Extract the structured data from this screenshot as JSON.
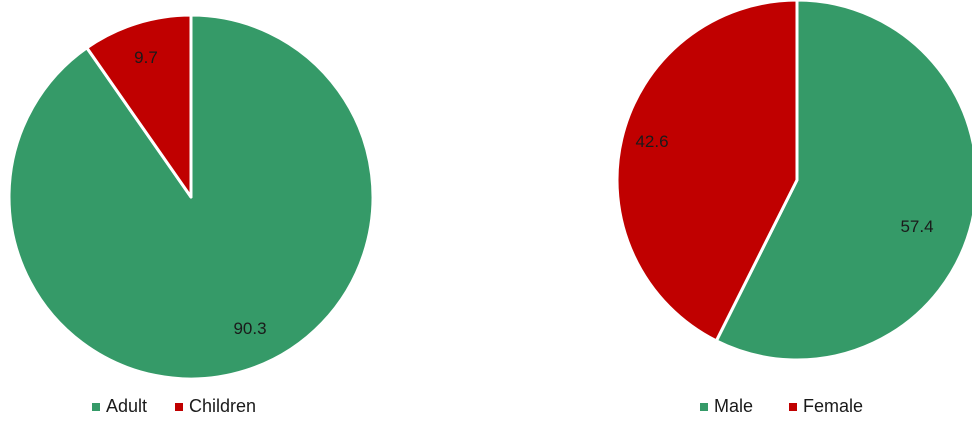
{
  "chart_data": [
    {
      "type": "pie",
      "categories": [
        "Adult",
        "Children"
      ],
      "values": [
        90.3,
        9.7
      ],
      "colors": [
        "#359a68",
        "#c00000"
      ],
      "data_labels": [
        "90.3",
        "9.7"
      ],
      "legend": {
        "position": "bottom",
        "entries": [
          "Adult",
          "Children"
        ]
      },
      "start_angle": "12 o'clock",
      "direction": "clockwise"
    },
    {
      "type": "pie",
      "categories": [
        "Male",
        "Female"
      ],
      "values": [
        57.4,
        42.6
      ],
      "colors": [
        "#359a68",
        "#c00000"
      ],
      "data_labels": [
        "57.4",
        "42.6"
      ],
      "legend": {
        "position": "bottom",
        "entries": [
          "Male",
          "Female"
        ]
      },
      "start_angle": "12 o'clock",
      "direction": "clockwise"
    }
  ]
}
